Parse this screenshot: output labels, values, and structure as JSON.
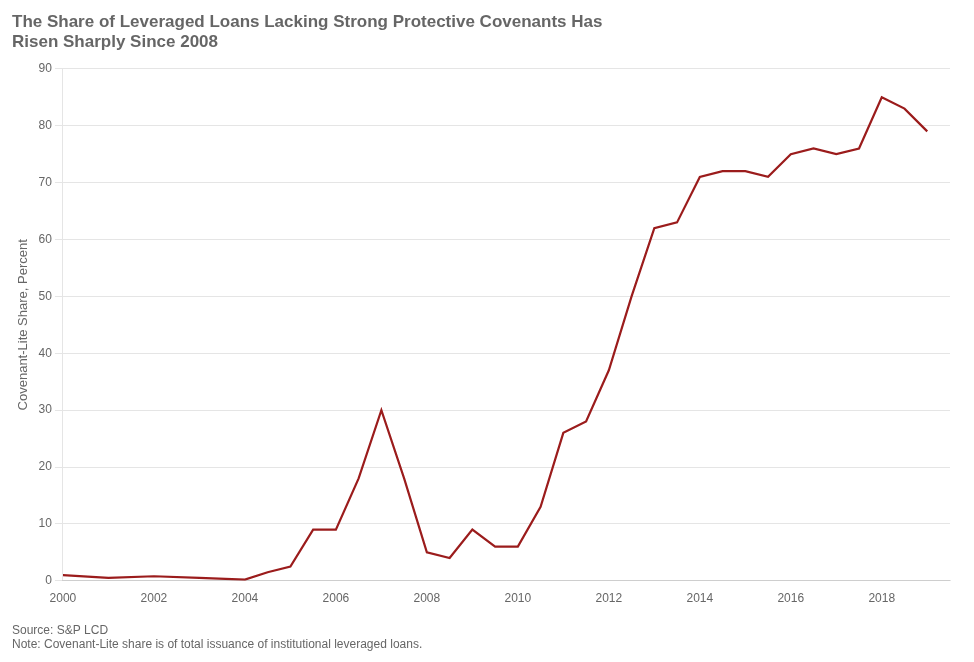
{
  "chart_data": {
    "type": "line",
    "title": "The Share of Leveraged Loans Lacking Strong Protective Covenants Has\nRisen Sharply Since 2008",
    "ylabel": "Covenant-Lite Share, Percent",
    "source_note": "Source: S&P LCD\nNote: Covenant-Lite share is of total issuance of institutional leveraged loans.",
    "x": [
      2000,
      2001,
      2002,
      2003,
      2004,
      2004.5,
      2005,
      2005.5,
      2006,
      2006.5,
      2007,
      2007.5,
      2008,
      2008.5,
      2009,
      2009.5,
      2010,
      2010.5,
      2011,
      2011.5,
      2012,
      2012.5,
      2013,
      2013.5,
      2014,
      2014.5,
      2015,
      2015.5,
      2016,
      2016.5,
      2017,
      2017.5,
      2018,
      2018.5,
      2019
    ],
    "series": [
      {
        "color": "#9B1C1C",
        "values": [
          1,
          0.5,
          0.8,
          0.5,
          0.2,
          1.5,
          2.5,
          9,
          9,
          18,
          30,
          18,
          5,
          4,
          9,
          6,
          6,
          13,
          26,
          28,
          37,
          50,
          62,
          63,
          71,
          72,
          72,
          71,
          75,
          76,
          75,
          76,
          85,
          83,
          79
        ]
      }
    ],
    "xlim": [
      2000,
      2019.5
    ],
    "xticks": [
      2000,
      2002,
      2004,
      2006,
      2008,
      2010,
      2012,
      2014,
      2016,
      2018
    ],
    "ylim": [
      0,
      90
    ],
    "yticks": [
      0,
      10,
      20,
      30,
      40,
      50,
      60,
      70,
      80,
      90
    ],
    "grid": "y"
  }
}
